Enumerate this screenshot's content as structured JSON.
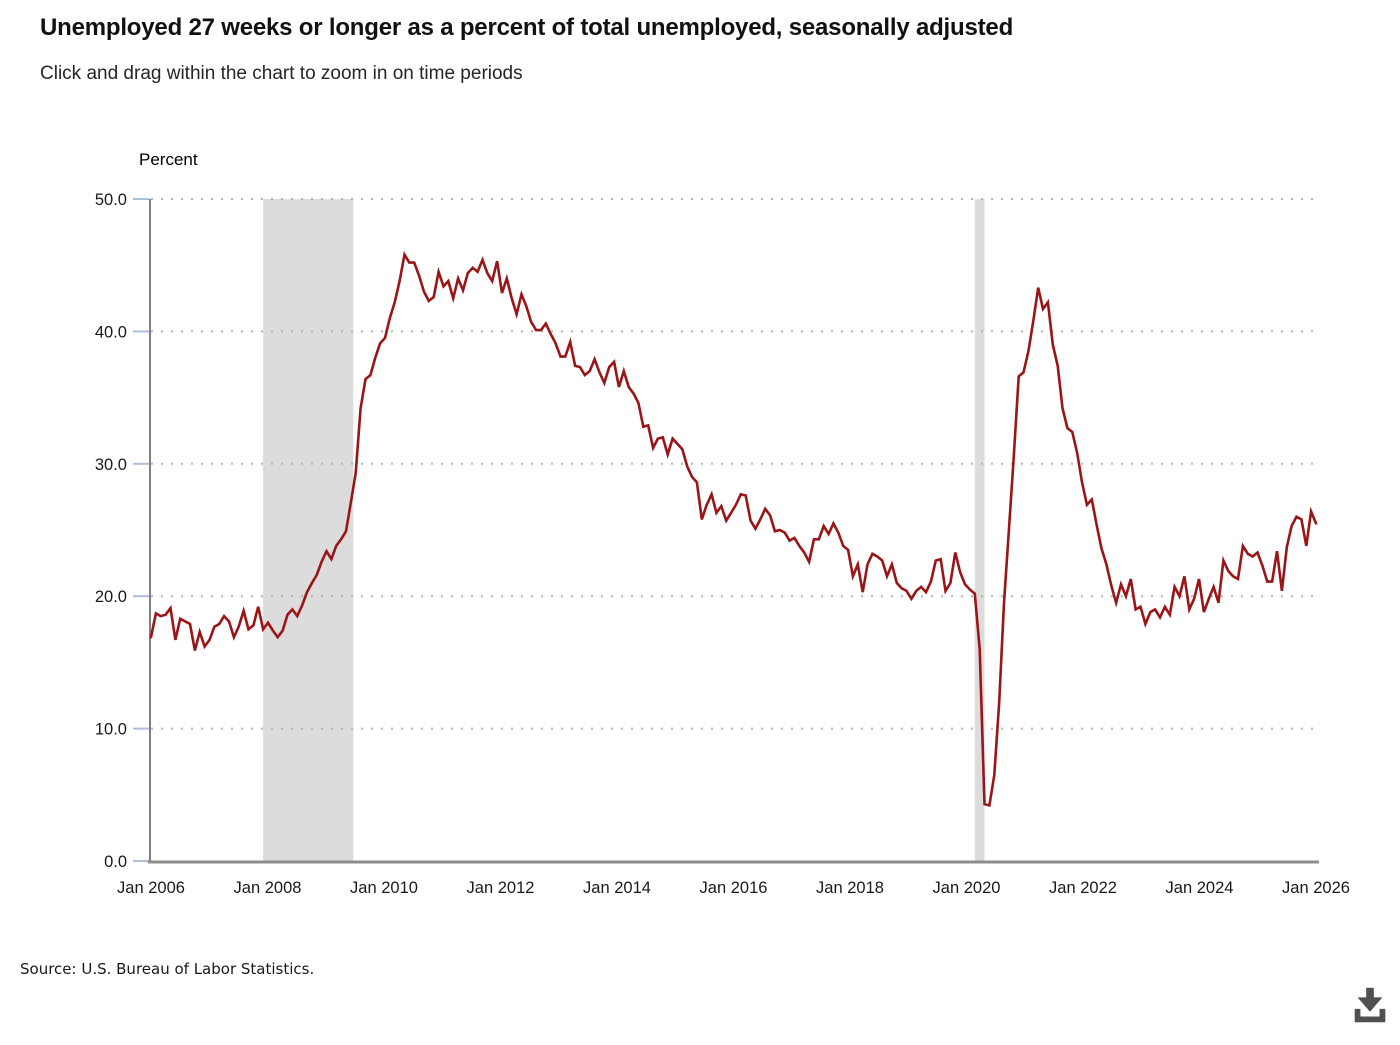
{
  "header": {
    "title": "Unemployed 27 weeks or longer as a percent of total unemployed, seasonally adjusted",
    "subtitle": "Click and drag within the chart to zoom in on time periods"
  },
  "footer": {
    "source": "Source: U.S. Bureau of Labor Statistics."
  },
  "icons": {
    "download": "download-icon"
  },
  "chart_data": {
    "type": "line",
    "title": "Unemployed 27 weeks or longer as a percent of total unemployed, seasonally adjusted",
    "xlabel": "",
    "ylabel": "Percent",
    "ylim": [
      0,
      50
    ],
    "yticks": [
      50,
      40,
      30,
      20,
      10,
      0
    ],
    "ytick_labels": [
      "50.0",
      "40.0",
      "30.0",
      "20.0",
      "10.0",
      "0.0"
    ],
    "xtick_labels": [
      "Jan 2006",
      "Jan 2008",
      "Jan 2010",
      "Jan 2012",
      "Jan 2014",
      "Jan 2016",
      "Jan 2018",
      "Jan 2020",
      "Jan 2022",
      "Jan 2024",
      "Jan 2026"
    ],
    "grid": "horizontal-dotted",
    "legend": "none",
    "line_color": "#9a1518",
    "recession_band_color": "#dcdcdc",
    "recession_bands": [
      {
        "label": "Recession Dec 2007 - Jun 2009",
        "start_month_index": 23,
        "end_month_index": 41.5
      },
      {
        "label": "Recession Feb 2020 - Apr 2020",
        "start_month_index": 169,
        "end_month_index": 171
      }
    ],
    "series": [
      {
        "name": "Unemployed 27 weeks or longer as a percent of total unemployed",
        "frequency": "monthly",
        "start": "Jan 2006",
        "end": "Dec 2025",
        "values": [
          16.9,
          18.7,
          18.5,
          18.6,
          19.1,
          16.7,
          18.3,
          18.1,
          17.9,
          15.9,
          17.3,
          16.2,
          16.7,
          17.7,
          17.9,
          18.5,
          18.1,
          16.9,
          17.7,
          18.9,
          17.5,
          17.8,
          19.2,
          17.5,
          18.0,
          17.4,
          16.9,
          17.4,
          18.6,
          19.0,
          18.5,
          19.3,
          20.3,
          21.0,
          21.6,
          22.6,
          23.4,
          22.8,
          23.8,
          24.3,
          24.9,
          27.1,
          29.3,
          34.2,
          36.4,
          36.7,
          38.0,
          39.1,
          39.5,
          41.0,
          42.2,
          43.8,
          45.8,
          45.2,
          45.2,
          44.2,
          43.0,
          42.3,
          42.6,
          44.5,
          43.4,
          43.8,
          42.5,
          44.0,
          43.1,
          44.4,
          44.8,
          44.5,
          45.4,
          44.4,
          43.8,
          45.3,
          42.9,
          44.0,
          42.5,
          41.3,
          42.8,
          41.9,
          40.7,
          40.1,
          40.1,
          40.6,
          39.8,
          39.1,
          38.1,
          38.1,
          39.2,
          37.4,
          37.3,
          36.7,
          37.0,
          37.9,
          36.9,
          36.1,
          37.3,
          37.7,
          35.8,
          37.0,
          35.8,
          35.3,
          34.6,
          32.8,
          32.9,
          31.2,
          31.9,
          32.0,
          30.7,
          31.9,
          31.5,
          31.1,
          29.8,
          29.0,
          28.6,
          25.8,
          26.9,
          27.7,
          26.3,
          26.8,
          25.7,
          26.3,
          26.9,
          27.7,
          27.6,
          25.7,
          25.1,
          25.8,
          26.6,
          26.1,
          24.9,
          25.0,
          24.8,
          24.2,
          24.4,
          23.8,
          23.3,
          22.6,
          24.3,
          24.3,
          25.3,
          24.7,
          25.5,
          24.8,
          23.8,
          23.5,
          21.5,
          22.4,
          20.3,
          22.4,
          23.2,
          23.0,
          22.7,
          21.5,
          22.4,
          21.0,
          20.6,
          20.4,
          19.8,
          20.4,
          20.7,
          20.3,
          21.1,
          22.7,
          22.8,
          20.4,
          21.0,
          23.3,
          21.8,
          20.9,
          20.5,
          20.2,
          16.0,
          4.3,
          4.2,
          6.5,
          12.0,
          19.5,
          25.0,
          30.6,
          36.6,
          36.9,
          38.5,
          40.8,
          43.3,
          41.7,
          42.2,
          39.0,
          37.4,
          34.2,
          32.7,
          32.4,
          30.8,
          28.6,
          26.9,
          27.3,
          25.4,
          23.6,
          22.4,
          20.8,
          19.5,
          20.9,
          20.0,
          21.3,
          19.0,
          19.2,
          17.9,
          18.8,
          19.0,
          18.4,
          19.2,
          18.6,
          20.7,
          20.0,
          21.5,
          19.0,
          19.8,
          21.3,
          18.8,
          19.8,
          20.7,
          19.5,
          22.7,
          21.9,
          21.5,
          21.3,
          23.8,
          23.2,
          23.0,
          23.3,
          22.3,
          21.1,
          21.1,
          23.4,
          20.4,
          23.7,
          25.3,
          26.0,
          25.8,
          23.8,
          26.4,
          25.5
        ]
      }
    ],
    "axis_colors": {
      "y_axis": "#808080",
      "x_axis": "#8c8c8c",
      "gridline": "#b3b3b3",
      "tick_mark": "#aebfd8",
      "label_text": "#1a1a1a"
    }
  }
}
